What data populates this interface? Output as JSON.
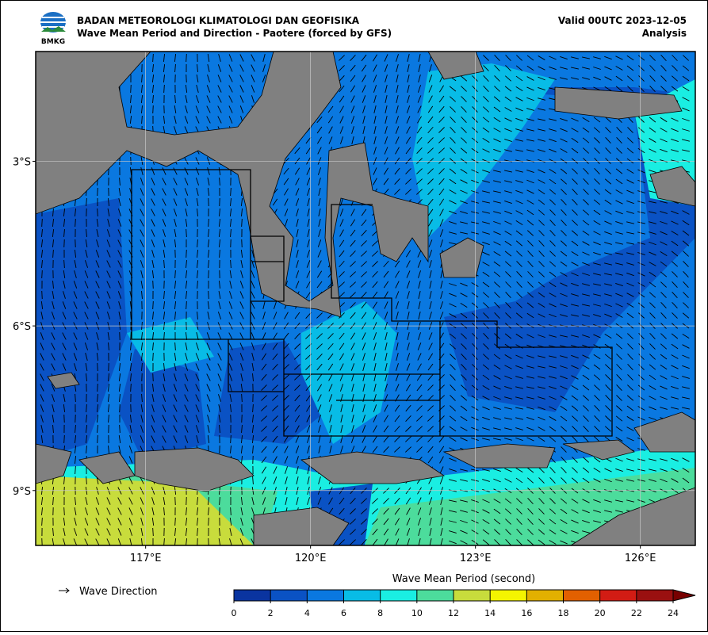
{
  "header": {
    "agency": "BADAN METEOROLOGI KLIMATOLOGI DAN GEOFISIKA",
    "title": "Wave Mean Period and Direction - Paotere (forced by GFS)",
    "valid": "Valid 00UTC 2023-12-05",
    "kind": "Analysis",
    "logo": "BMKG"
  },
  "chart_data": {
    "type": "map",
    "xlim": [
      115,
      127
    ],
    "ylim": [
      -10,
      -1
    ],
    "xticks": [
      {
        "value": 117,
        "label": "117°E"
      },
      {
        "value": 120,
        "label": "120°E"
      },
      {
        "value": 123,
        "label": "123°E"
      },
      {
        "value": 126,
        "label": "126°E"
      }
    ],
    "yticks": [
      {
        "value": -3,
        "label": "3°S"
      },
      {
        "value": -6,
        "label": "6°S"
      },
      {
        "value": -9,
        "label": "9°S"
      }
    ],
    "grid": true,
    "legend": "Wave Direction",
    "colorbar": {
      "title": "Wave Mean Period (second)",
      "ticks": [
        0,
        2,
        4,
        6,
        8,
        10,
        12,
        14,
        16,
        18,
        20,
        22,
        24
      ],
      "colors": [
        "#0a34a0",
        "#0a52c4",
        "#0a78e0",
        "#08bce6",
        "#1aeee2",
        "#4cdc9c",
        "#c8dc3c",
        "#f4f400",
        "#e2b000",
        "#e26000",
        "#d21c14",
        "#9a1010"
      ],
      "extend_color": "#780000"
    }
  }
}
